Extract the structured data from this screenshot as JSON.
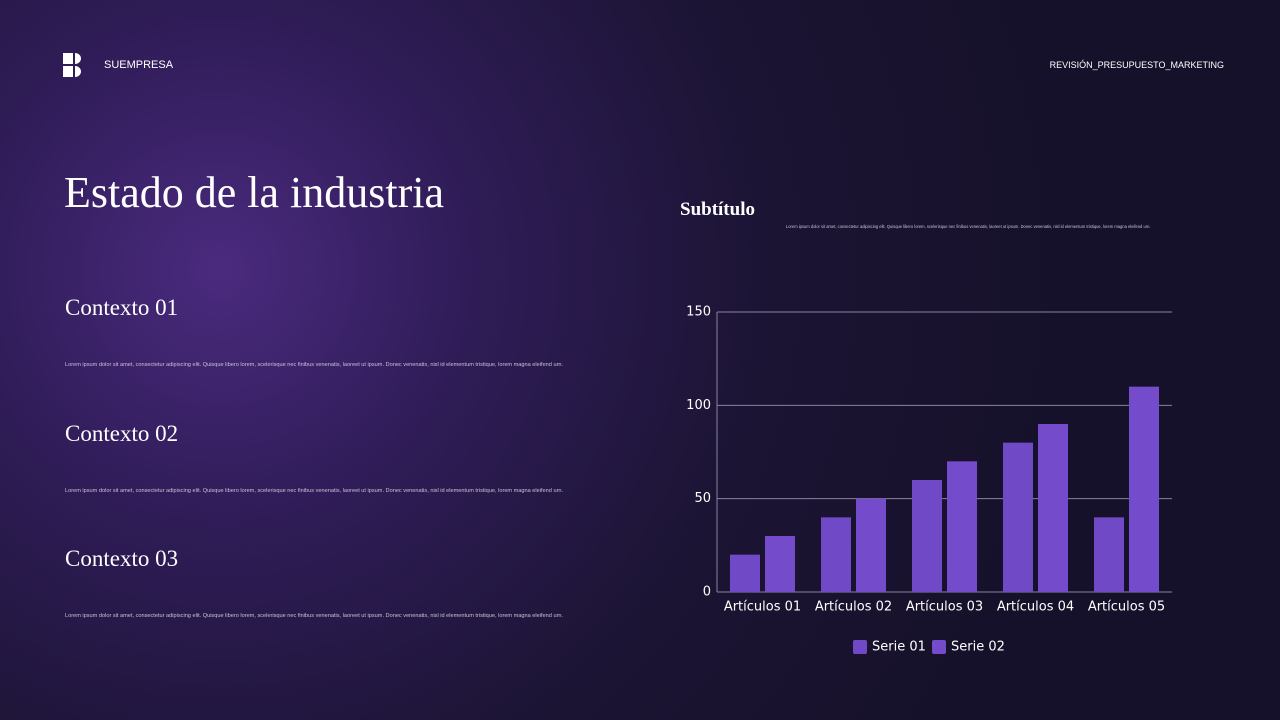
{
  "header": {
    "brand": "SUEMPRESA",
    "label": "REVISIÓN_PRESUPUESTO_MARKETING"
  },
  "title": "Estado de la industria",
  "sections": [
    {
      "heading": "Contexto 01",
      "text": "Lorem ipsum dolor sit amet, consectetur adipiscing elit. Quisque libero lorem, scelerisque nec finibus venenatis, laoreet ut ipsum. Donec venenatis, nisl id elementum tristique, lorem magna eleifend urn."
    },
    {
      "heading": "Contexto 02",
      "text": "Lorem ipsum dolor sit amet, consectetur adipiscing elit. Quisque libero lorem, scelerisque nec finibus venenatis, laoreet ut ipsum. Donec venenatis, nisl id elementum tristique, lorem magna eleifend urn."
    },
    {
      "heading": "Contexto 03",
      "text": "Lorem ipsum dolor sit amet, consectetur adipiscing elit. Quisque libero lorem, scelerisque nec finibus venenatis, laoreet ut ipsum. Donec venenatis, nisl id elementum tristique, lorem magna eleifend urn."
    }
  ],
  "chart_data": {
    "type": "bar",
    "subtitle": "Subtítulo",
    "description": "Lorem ipsum dolor sit amet, consectetur adipiscing elit. Quisque libero lorem, scelerisque nec finibus venenatis, laoreet ut ipsum. Donec venenatis, nisl id elementum tristique, lorem magna eleifend urn.",
    "categories": [
      "Artículos 01",
      "Artículos 02",
      "Artículos 03",
      "Artículos 04",
      "Artículos 05"
    ],
    "series": [
      {
        "name": "Serie 01",
        "color": "#7049c6",
        "values": [
          20,
          40,
          60,
          80,
          40
        ]
      },
      {
        "name": "Serie 02",
        "color": "#744ccb",
        "values": [
          30,
          50,
          70,
          90,
          110
        ]
      }
    ],
    "ylim": [
      0,
      150
    ],
    "yticks": [
      0,
      50,
      100,
      150
    ],
    "grid": true,
    "legend": "bottom"
  }
}
